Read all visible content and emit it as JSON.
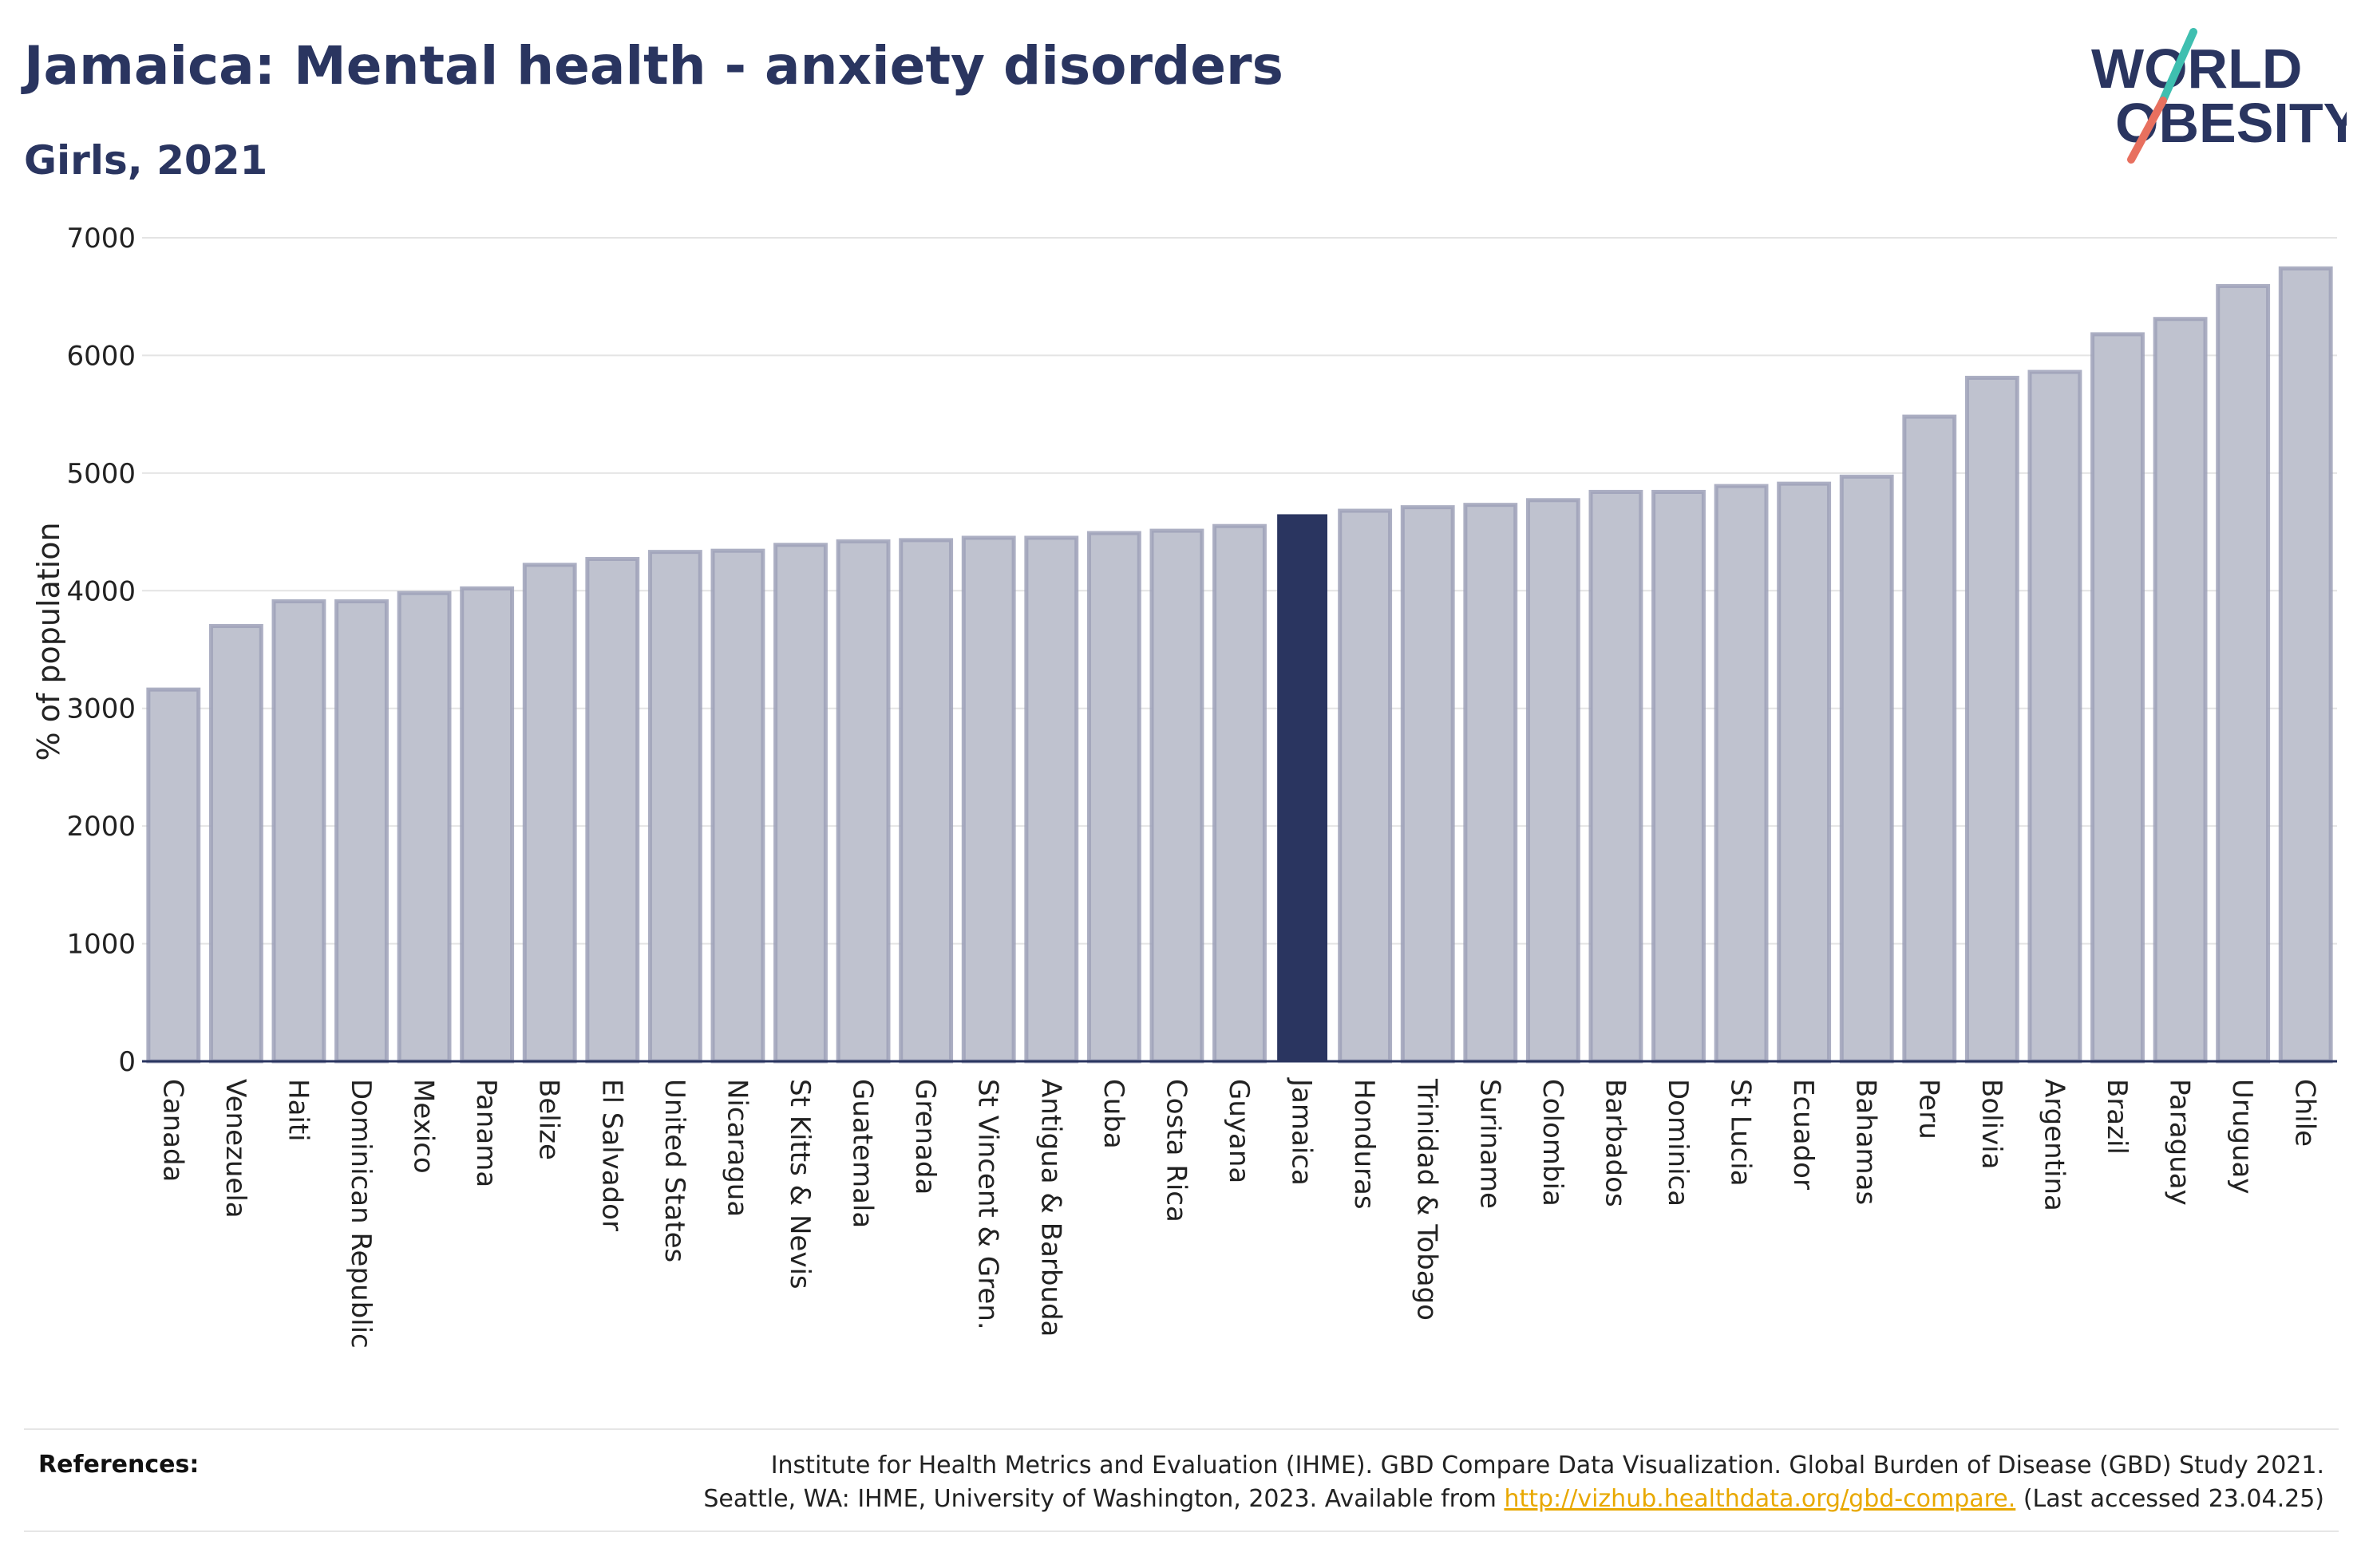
{
  "header": {
    "title": "Jamaica: Mental health - anxiety disorders",
    "subtitle": "Girls, 2021"
  },
  "logo": {
    "line1": "WORLD",
    "line2": "OBESITY",
    "accent_teal": "#3fbfb0",
    "accent_red": "#e8705f"
  },
  "references": {
    "label": "References:",
    "line1": "Institute for Health Metrics and Evaluation (IHME). GBD Compare Data Visualization. Global Burden of Disease (GBD) Study 2021.",
    "line2_prefix": "Seattle, WA: IHME, University of Washington, 2023. Available from ",
    "link_text": "http://vizhub.healthdata.org/gbd-compare.",
    "line2_suffix": " (Last accessed 23.04.25)"
  },
  "chart_data": {
    "type": "bar",
    "ylabel": "% of population",
    "xlabel": "",
    "ylim": [
      0,
      7000
    ],
    "yticks": [
      0,
      1000,
      2000,
      3000,
      4000,
      5000,
      6000,
      7000
    ],
    "grid": true,
    "highlight": "Jamaica",
    "colors": {
      "bar": "#bfc2cf",
      "bar_edge": "#9da1b8",
      "highlight": "#2a3560"
    },
    "categories": [
      "Canada",
      "Venezuela",
      "Haiti",
      "Dominican Republic",
      "Mexico",
      "Panama",
      "Belize",
      "El Salvador",
      "United States",
      "Nicaragua",
      "St Kitts & Nevis",
      "Guatemala",
      "Grenada",
      "St Vincent & Gren.",
      "Antigua & Barbuda",
      "Cuba",
      "Costa Rica",
      "Guyana",
      "Jamaica",
      "Honduras",
      "Trinidad & Tobago",
      "Suriname",
      "Colombia",
      "Barbados",
      "Dominica",
      "St Lucia",
      "Ecuador",
      "Bahamas",
      "Peru",
      "Bolivia",
      "Argentina",
      "Brazil",
      "Paraguay",
      "Uruguay",
      "Chile"
    ],
    "values": [
      3160,
      3700,
      3910,
      3910,
      3980,
      4020,
      4220,
      4270,
      4330,
      4340,
      4390,
      4420,
      4430,
      4450,
      4450,
      4490,
      4510,
      4550,
      4650,
      4680,
      4710,
      4730,
      4770,
      4840,
      4840,
      4890,
      4910,
      4970,
      5480,
      5810,
      5860,
      6180,
      6310,
      6590,
      6740
    ]
  }
}
